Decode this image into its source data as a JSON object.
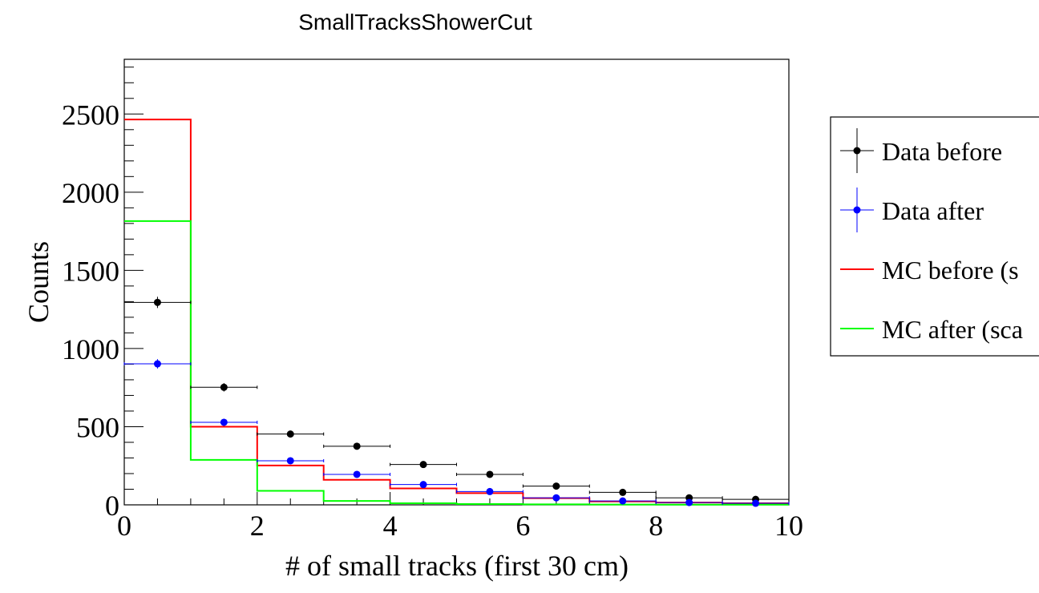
{
  "chart_data": {
    "type": "histogram",
    "title": "SmallTracksShowerCut",
    "xlabel": "# of small tracks (first 30 cm)",
    "ylabel": "Counts",
    "xlim": [
      0,
      10
    ],
    "ylim": [
      0,
      2850
    ],
    "x_ticks": [
      0,
      2,
      4,
      6,
      8,
      10
    ],
    "y_ticks": [
      0,
      500,
      1000,
      1500,
      2000,
      2500
    ],
    "bin_edges": [
      0,
      1,
      2,
      3,
      4,
      5,
      6,
      7,
      8,
      9,
      10
    ],
    "legend_position": "right (outside plot, clipped)",
    "grid": false,
    "series": [
      {
        "name": "Data before",
        "style": "points-with-errors",
        "color": "#000000",
        "values": [
          1295,
          752,
          453,
          375,
          258,
          195,
          120,
          80,
          45,
          35
        ],
        "errors": [
          36,
          27,
          21,
          19,
          16,
          14,
          11,
          9,
          7,
          6
        ]
      },
      {
        "name": "Data after",
        "style": "points-with-errors",
        "color": "#0000ff",
        "values": [
          902,
          528,
          282,
          195,
          130,
          85,
          45,
          25,
          15,
          10
        ],
        "errors": [
          30,
          23,
          17,
          14,
          11,
          9,
          7,
          5,
          4,
          3
        ]
      },
      {
        "name": "MC before (s",
        "style": "step",
        "color": "#ff0000",
        "values": [
          2465,
          500,
          252,
          160,
          105,
          75,
          43,
          22,
          15,
          10
        ]
      },
      {
        "name": "MC after (sca",
        "style": "step",
        "color": "#00ff00",
        "values": [
          1815,
          288,
          90,
          25,
          10,
          5,
          3,
          2,
          1,
          1
        ]
      }
    ]
  }
}
